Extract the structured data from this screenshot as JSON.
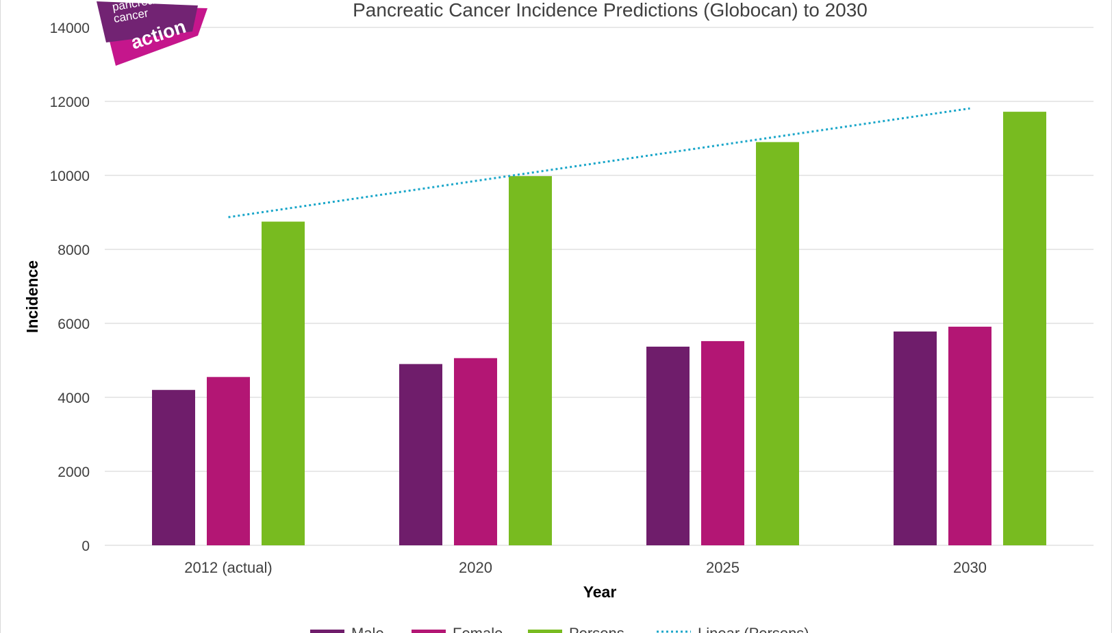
{
  "logo": {
    "lines": [
      "pancreatic",
      "cancer",
      "action"
    ],
    "colors": {
      "purple": "#722373",
      "magenta": "#c5168c"
    }
  },
  "colors": {
    "male": "#6f1d6b",
    "female": "#b31674",
    "persons": "#78bb20",
    "trend": "#1aa6c9",
    "grid": "#d9d9d9",
    "text": "#404040"
  },
  "chart_data": {
    "type": "bar",
    "title": "Pancreatic Cancer Incidence Predictions (Globocan) to 2030",
    "xlabel": "Year",
    "ylabel": "Incidence",
    "ylim": [
      0,
      14000
    ],
    "yticks": [
      0,
      2000,
      4000,
      6000,
      8000,
      10000,
      12000,
      14000
    ],
    "categories": [
      "2012 (actual)",
      "2020",
      "2025",
      "2030"
    ],
    "series": [
      {
        "name": "Male",
        "values": [
          4200,
          4900,
          5370,
          5780
        ]
      },
      {
        "name": "Female",
        "values": [
          4550,
          5060,
          5520,
          5910
        ]
      },
      {
        "name": "Persons",
        "values": [
          8750,
          9980,
          10900,
          11720
        ]
      }
    ],
    "trendline": {
      "name": "Linear (Persons)",
      "type": "linear",
      "series": "Persons",
      "start": 8870,
      "end": 11810
    },
    "grid": true,
    "legend": "bottom"
  }
}
